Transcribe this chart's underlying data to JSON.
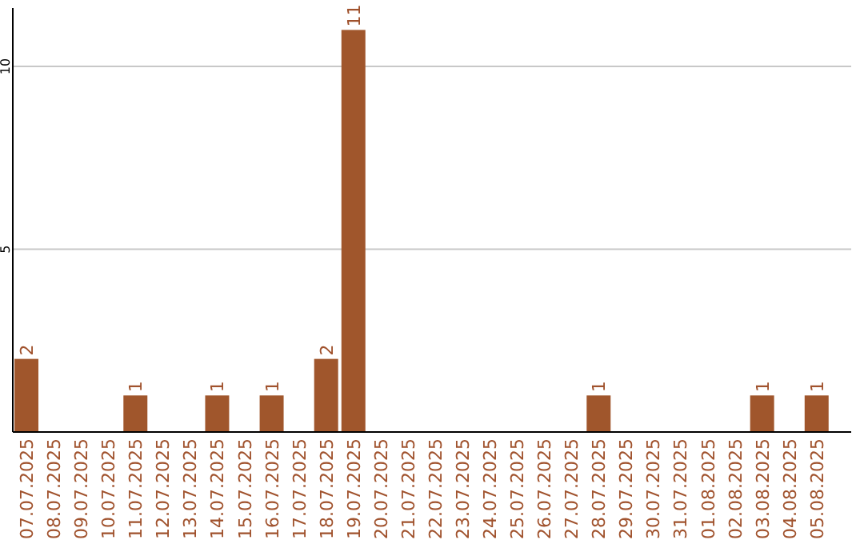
{
  "chart_data": {
    "type": "bar",
    "categories": [
      "07.07.2025",
      "08.07.2025",
      "09.07.2025",
      "10.07.2025",
      "11.07.2025",
      "12.07.2025",
      "13.07.2025",
      "14.07.2025",
      "15.07.2025",
      "16.07.2025",
      "17.07.2025",
      "18.07.2025",
      "19.07.2025",
      "20.07.2025",
      "21.07.2025",
      "22.07.2025",
      "23.07.2025",
      "24.07.2025",
      "25.07.2025",
      "26.07.2025",
      "27.07.2025",
      "28.07.2025",
      "29.07.2025",
      "30.07.2025",
      "31.07.2025",
      "01.08.2025",
      "02.08.2025",
      "03.08.2025",
      "04.08.2025",
      "05.08.2025"
    ],
    "values": [
      2,
      0,
      0,
      0,
      1,
      0,
      0,
      1,
      0,
      1,
      0,
      2,
      11,
      0,
      0,
      0,
      0,
      0,
      0,
      0,
      0,
      1,
      0,
      0,
      0,
      0,
      0,
      1,
      0,
      1
    ],
    "value_labels": [
      "2",
      null,
      null,
      null,
      "1",
      null,
      null,
      "1",
      null,
      "1",
      null,
      "2",
      "11",
      null,
      null,
      null,
      null,
      null,
      null,
      null,
      null,
      "1",
      null,
      null,
      null,
      null,
      null,
      "1",
      null,
      "1"
    ],
    "color": "#a0562c",
    "ylim": [
      0,
      11.6
    ],
    "yticks": [
      5,
      10
    ],
    "grid": "y"
  }
}
